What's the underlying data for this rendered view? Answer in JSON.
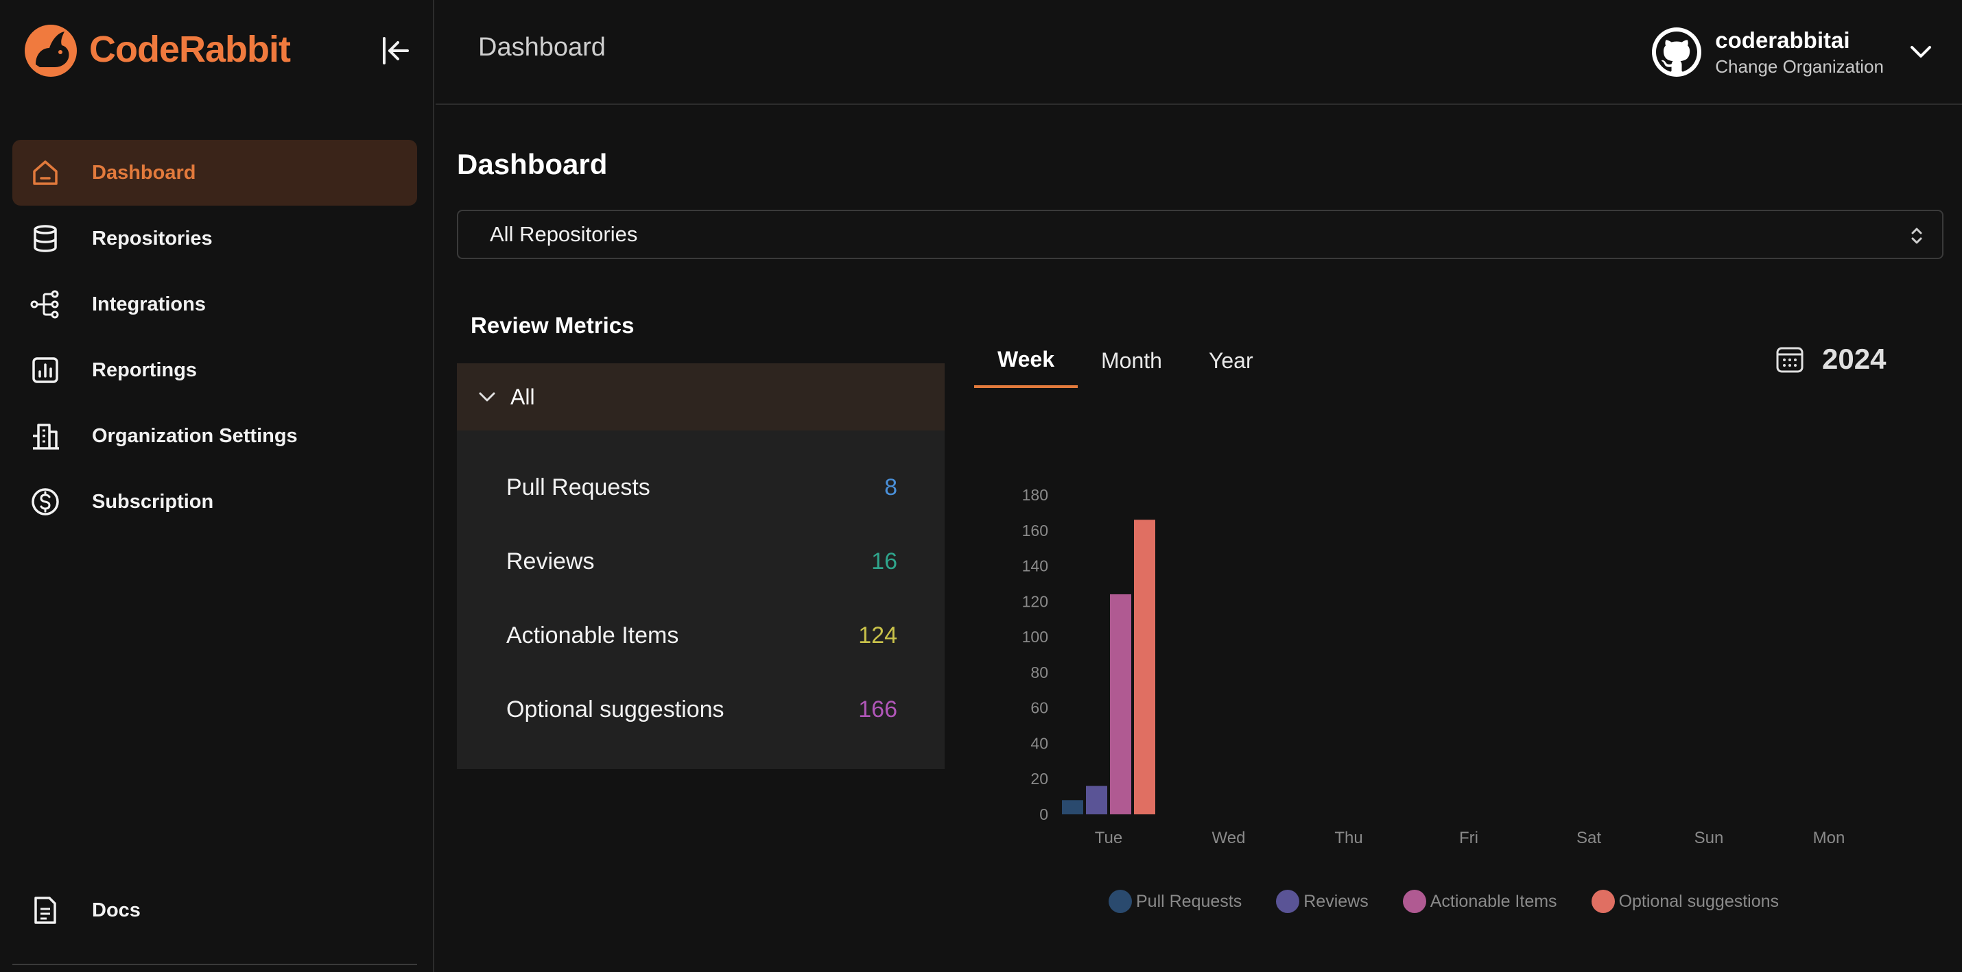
{
  "brand": {
    "name": "CodeRabbit"
  },
  "sidebar": {
    "items": [
      {
        "label": "Dashboard",
        "icon": "home-icon",
        "active": true
      },
      {
        "label": "Repositories",
        "icon": "database-icon",
        "active": false
      },
      {
        "label": "Integrations",
        "icon": "integrations-icon",
        "active": false
      },
      {
        "label": "Reportings",
        "icon": "report-chart-icon",
        "active": false
      },
      {
        "label": "Organization Settings",
        "icon": "building-icon",
        "active": false
      },
      {
        "label": "Subscription",
        "icon": "dollar-circle-icon",
        "active": false
      }
    ],
    "docs": {
      "label": "Docs",
      "icon": "document-icon"
    }
  },
  "header": {
    "title": "Dashboard",
    "org_name": "coderabbitai",
    "org_sub": "Change Organization"
  },
  "main": {
    "title": "Dashboard",
    "repo_select": {
      "value": "All Repositories"
    },
    "metrics": {
      "title": "Review Metrics",
      "group": "All",
      "rows": [
        {
          "label": "Pull Requests",
          "value": "8",
          "color": "#4a90d9"
        },
        {
          "label": "Reviews",
          "value": "16",
          "color": "#2fa58c"
        },
        {
          "label": "Actionable Items",
          "value": "124",
          "color": "#c9c24a"
        },
        {
          "label": "Optional suggestions",
          "value": "166",
          "color": "#b056b8"
        }
      ]
    },
    "tabs": [
      {
        "label": "Week",
        "active": true
      },
      {
        "label": "Month",
        "active": false
      },
      {
        "label": "Year",
        "active": false
      }
    ],
    "year": "2024"
  },
  "colors": {
    "accent": "#e27a3c",
    "brand": "#f07a3e",
    "pull_requests": "#2a4a6e",
    "reviews": "#5a5496",
    "actionable_items": "#b05a92",
    "optional_suggestions": "#e06f62"
  },
  "chart_data": {
    "type": "bar",
    "categories": [
      "Tue",
      "Wed",
      "Thu",
      "Fri",
      "Sat",
      "Sun",
      "Mon"
    ],
    "series": [
      {
        "name": "Pull Requests",
        "color": "#2a4a6e",
        "values": [
          8,
          0,
          0,
          0,
          0,
          0,
          0
        ]
      },
      {
        "name": "Reviews",
        "color": "#5a5496",
        "values": [
          16,
          0,
          0,
          0,
          0,
          0,
          0
        ]
      },
      {
        "name": "Actionable Items",
        "color": "#b05a92",
        "values": [
          124,
          0,
          0,
          0,
          0,
          0,
          0
        ]
      },
      {
        "name": "Optional suggestions",
        "color": "#e06f62",
        "values": [
          166,
          0,
          0,
          0,
          0,
          0,
          0
        ]
      }
    ],
    "yticks": [
      0,
      20,
      40,
      60,
      80,
      100,
      120,
      140,
      160,
      180
    ],
    "ylim": [
      0,
      180
    ],
    "grid": false,
    "legend": "bottom"
  }
}
